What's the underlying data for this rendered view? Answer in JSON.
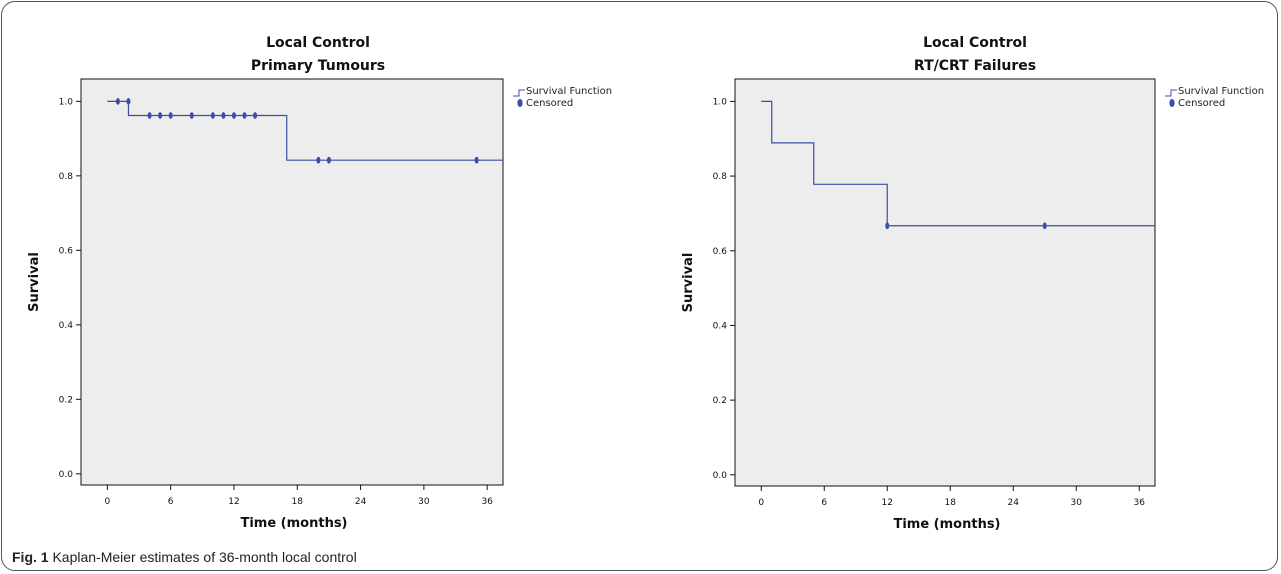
{
  "caption": {
    "label": "Fig. 1",
    "text": "Kaplan-Meier estimates of 36-month local control"
  },
  "colors": {
    "line": "#3b4fa8",
    "marker": "#3b4fa8",
    "plot_bg": "#ededed"
  },
  "legend": {
    "survival": "Survival Function",
    "censored": "Censored",
    "placement": "top-right"
  },
  "chart_data": [
    {
      "type": "line",
      "step": true,
      "title": "Local Control",
      "subtitle": "Primary Tumours",
      "xlabel": "Time (months)",
      "ylabel": "Survival",
      "xlim": [
        -2.5,
        37.5
      ],
      "ylim": [
        -0.03,
        1.06
      ],
      "xticks": [
        0,
        6,
        12,
        18,
        24,
        30,
        36
      ],
      "yticks": [
        0.0,
        0.2,
        0.4,
        0.6,
        0.8,
        1.0
      ],
      "ytick_labels": [
        "0.0",
        "0.2",
        "0.4",
        "0.6",
        "0.8",
        "1.0"
      ],
      "grid": false,
      "series": [
        {
          "name": "Survival Function",
          "x": [
            0,
            2,
            17,
            37.5
          ],
          "y": [
            1.0,
            0.962,
            0.842,
            0.842
          ]
        },
        {
          "name": "Censored",
          "points": [
            [
              1,
              1.0
            ],
            [
              2,
              1.0
            ],
            [
              4,
              0.962
            ],
            [
              5,
              0.962
            ],
            [
              6,
              0.962
            ],
            [
              8,
              0.962
            ],
            [
              10,
              0.962
            ],
            [
              11,
              0.962
            ],
            [
              12,
              0.962
            ],
            [
              13,
              0.962
            ],
            [
              14,
              0.962
            ],
            [
              20,
              0.842
            ],
            [
              21,
              0.842
            ],
            [
              35,
              0.842
            ]
          ]
        }
      ]
    },
    {
      "type": "line",
      "step": true,
      "title": "Local Control",
      "subtitle": "RT/CRT Failures",
      "xlabel": "Time (months)",
      "ylabel": "Survival",
      "xlim": [
        -2.5,
        37.5
      ],
      "ylim": [
        -0.03,
        1.06
      ],
      "xticks": [
        0,
        6,
        12,
        18,
        24,
        30,
        36
      ],
      "yticks": [
        0.0,
        0.2,
        0.4,
        0.6,
        0.8,
        1.0
      ],
      "ytick_labels": [
        "0.0",
        "0.2",
        "0.4",
        "0.6",
        "0.8",
        "1.0"
      ],
      "grid": false,
      "series": [
        {
          "name": "Survival Function",
          "x": [
            0,
            1,
            5,
            12,
            37.5
          ],
          "y": [
            1.0,
            0.889,
            0.778,
            0.667,
            0.667
          ]
        },
        {
          "name": "Censored",
          "points": [
            [
              12,
              0.667
            ],
            [
              27,
              0.667
            ]
          ]
        }
      ]
    }
  ]
}
